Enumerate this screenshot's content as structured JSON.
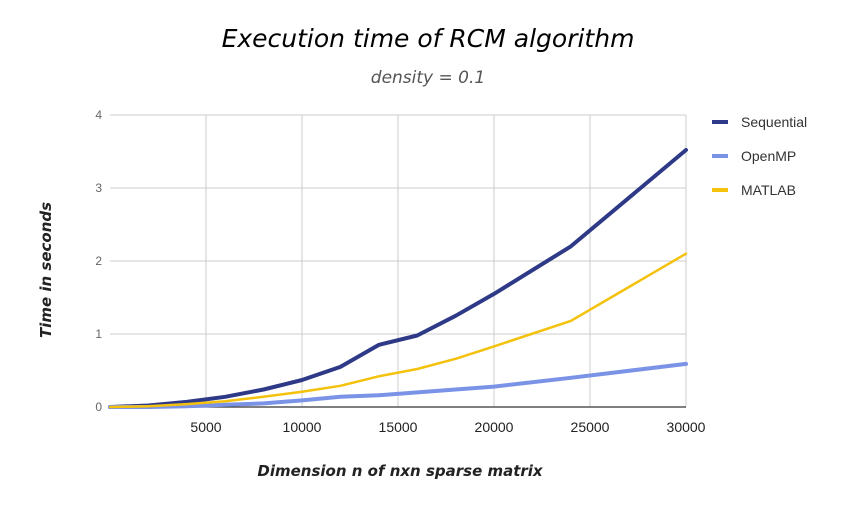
{
  "chart_data": {
    "type": "line",
    "title": "Execution time of RCM algorithm",
    "subtitle": "density = 0.1",
    "xlabel": "Dimension n of nxn sparse matrix",
    "ylabel": "Time in seconds",
    "xlim": [
      0,
      30000
    ],
    "ylim": [
      0,
      4
    ],
    "xticks": [
      "5000",
      "10000",
      "15000",
      "20000",
      "25000",
      "30000"
    ],
    "yticks": [
      "0",
      "1",
      "2",
      "3",
      "4"
    ],
    "grid": true,
    "legend_position": "right",
    "series": [
      {
        "name": "Sequential",
        "color": "#2e3a87",
        "x": [
          0,
          2000,
          4000,
          6000,
          8000,
          10000,
          12000,
          14000,
          16000,
          18000,
          20000,
          24000,
          30000
        ],
        "y": [
          0.0,
          0.02,
          0.07,
          0.14,
          0.24,
          0.37,
          0.55,
          0.85,
          0.98,
          1.25,
          1.55,
          2.2,
          3.52
        ]
      },
      {
        "name": "OpenMP",
        "color": "#7a93e6",
        "x": [
          0,
          2000,
          4000,
          6000,
          8000,
          10000,
          12000,
          14000,
          16000,
          18000,
          20000,
          24000,
          30000
        ],
        "y": [
          0.0,
          0.0,
          0.01,
          0.03,
          0.05,
          0.09,
          0.14,
          0.16,
          0.2,
          0.24,
          0.28,
          0.4,
          0.59
        ]
      },
      {
        "name": "MATLAB",
        "color": "#f4c20d",
        "x": [
          0,
          2000,
          4000,
          6000,
          8000,
          10000,
          12000,
          14000,
          16000,
          18000,
          20000,
          24000,
          30000
        ],
        "y": [
          0.0,
          0.01,
          0.04,
          0.08,
          0.14,
          0.21,
          0.29,
          0.42,
          0.52,
          0.66,
          0.83,
          1.18,
          2.1
        ]
      }
    ]
  }
}
